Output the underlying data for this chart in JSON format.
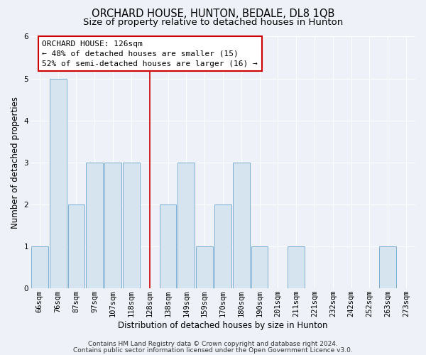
{
  "title": "ORCHARD HOUSE, HUNTON, BEDALE, DL8 1QB",
  "subtitle": "Size of property relative to detached houses in Hunton",
  "xlabel": "Distribution of detached houses by size in Hunton",
  "ylabel": "Number of detached properties",
  "bar_labels": [
    "66sqm",
    "76sqm",
    "87sqm",
    "97sqm",
    "107sqm",
    "118sqm",
    "128sqm",
    "138sqm",
    "149sqm",
    "159sqm",
    "170sqm",
    "180sqm",
    "190sqm",
    "201sqm",
    "211sqm",
    "221sqm",
    "232sqm",
    "242sqm",
    "252sqm",
    "263sqm",
    "273sqm"
  ],
  "bar_values": [
    1,
    5,
    2,
    3,
    3,
    3,
    0,
    2,
    3,
    1,
    2,
    3,
    1,
    0,
    1,
    0,
    0,
    0,
    0,
    1,
    0
  ],
  "bar_color": "#d6e4f0",
  "bar_edge_color": "#7bafd4",
  "red_line_index": 6,
  "ylim": [
    0,
    6
  ],
  "yticks": [
    0,
    1,
    2,
    3,
    4,
    5,
    6
  ],
  "annotation_title": "ORCHARD HOUSE: 126sqm",
  "annotation_line1": "← 48% of detached houses are smaller (15)",
  "annotation_line2": "52% of semi-detached houses are larger (16) →",
  "footer1": "Contains HM Land Registry data © Crown copyright and database right 2024.",
  "footer2": "Contains public sector information licensed under the Open Government Licence v3.0.",
  "bg_color": "#eef2f8",
  "plot_bg_color": "#eef2f8",
  "grid_color": "#ffffff",
  "title_fontsize": 10.5,
  "subtitle_fontsize": 9.5,
  "axis_label_fontsize": 8.5,
  "tick_fontsize": 7.5,
  "annotation_fontsize": 8,
  "footer_fontsize": 6.5
}
